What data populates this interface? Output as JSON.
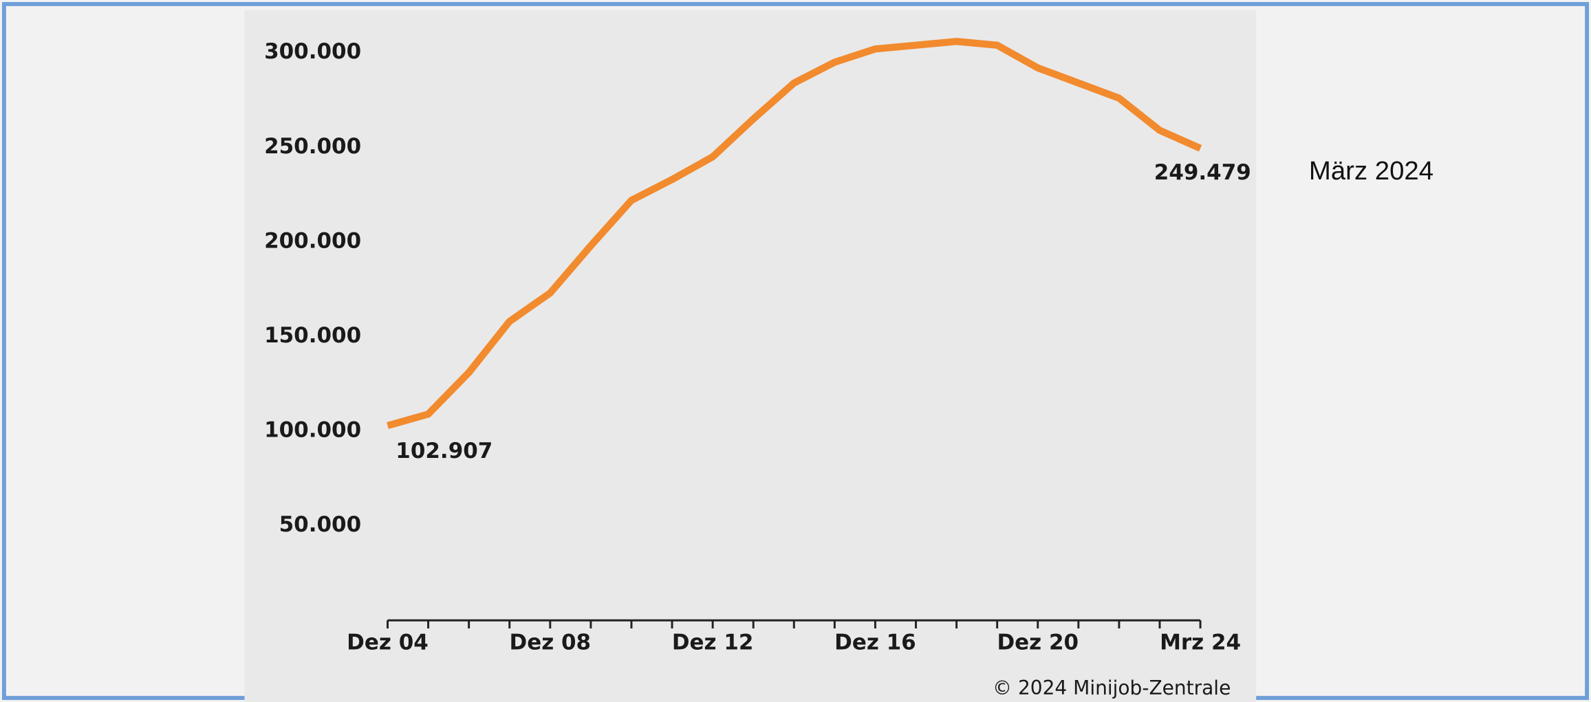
{
  "chart_data": {
    "type": "line",
    "annotation": "März 2024",
    "source": "© 2024 Minijob-Zentrale",
    "categories": [
      "Dez 04",
      null,
      null,
      null,
      "Dez 08",
      null,
      null,
      null,
      "Dez 12",
      null,
      null,
      null,
      "Dez 16",
      null,
      null,
      null,
      "Dez 20",
      null,
      null,
      null,
      "Mrz 24"
    ],
    "series": [
      {
        "color": "#f28a2e",
        "values": [
          102907,
          109000,
          131000,
          158000,
          173000,
          198000,
          222000,
          233000,
          245000,
          265000,
          284000,
          295000,
          302000,
          304000,
          306000,
          304000,
          292000,
          284000,
          276000,
          259000,
          249479
        ],
        "value_labels": [
          "102.907",
          null,
          null,
          null,
          null,
          null,
          null,
          null,
          null,
          null,
          null,
          null,
          null,
          null,
          null,
          null,
          null,
          null,
          null,
          null,
          "249.479"
        ]
      }
    ],
    "ylim": [
      0,
      300000
    ],
    "yticks": [
      {
        "value": 50000,
        "label": "50.000"
      },
      {
        "value": 100000,
        "label": "100.000"
      },
      {
        "value": 150000,
        "label": "150.000"
      },
      {
        "value": 200000,
        "label": "200.000"
      },
      {
        "value": 250000,
        "label": "250.000"
      },
      {
        "value": 300000,
        "label": "300.000"
      }
    ],
    "grid": false
  }
}
